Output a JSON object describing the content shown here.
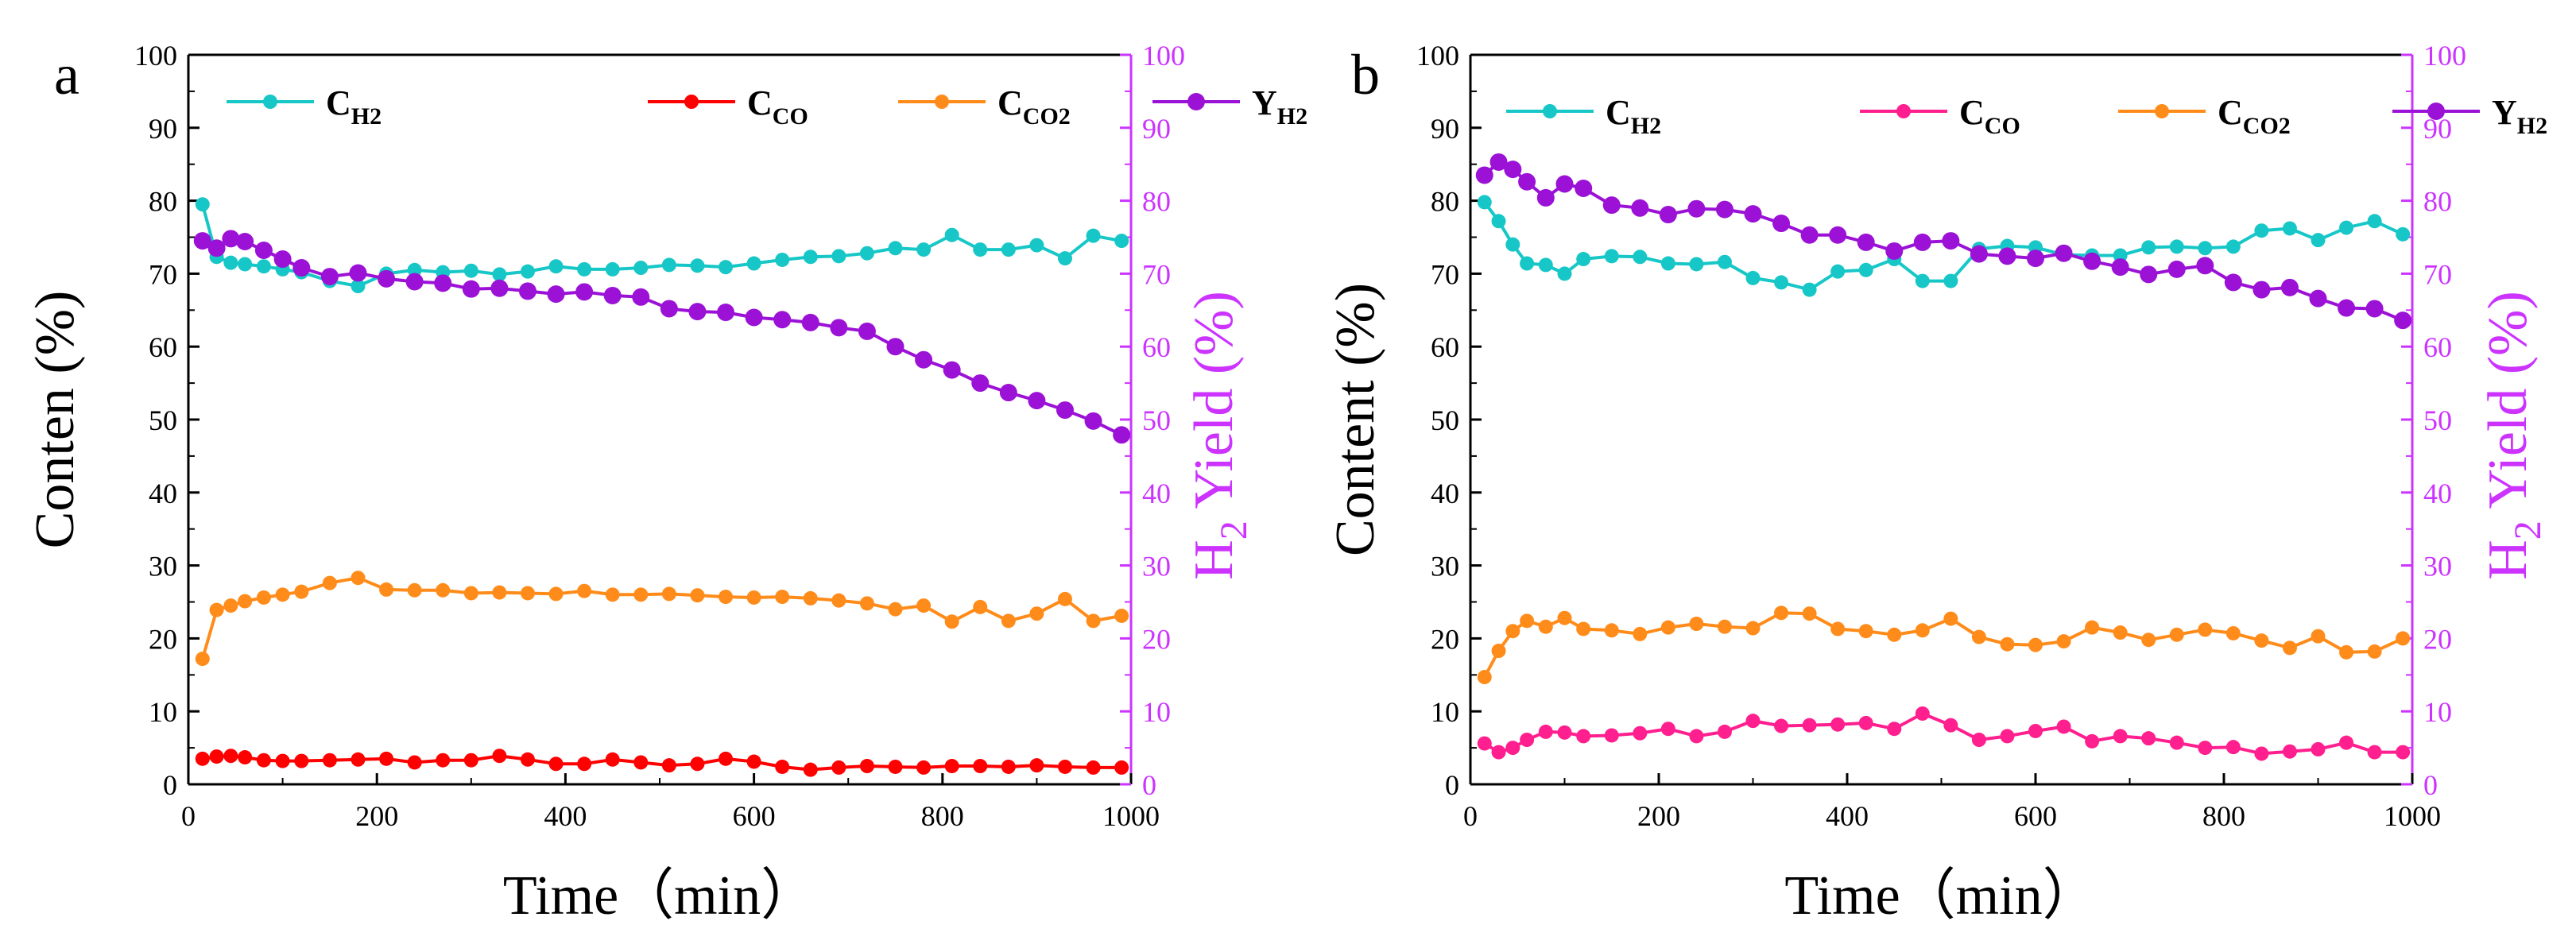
{
  "chart_data": [
    {
      "type": "line",
      "panel_label": "a",
      "xlabel": "Time（min）",
      "ylabel": "Conten (%)",
      "y2label": {
        "base": "H",
        "sub": "2",
        "rest": " Yield (%)"
      },
      "xlim": [
        0,
        1000
      ],
      "ylim": [
        0,
        100
      ],
      "y2lim": [
        0,
        100
      ],
      "x_ticks": [
        "0",
        "200",
        "400",
        "600",
        "800",
        "1000"
      ],
      "y_ticks": [
        "0",
        "10",
        "20",
        "30",
        "40",
        "50",
        "60",
        "70",
        "80",
        "90",
        "100"
      ],
      "y2_ticks": [
        "0",
        "10",
        "20",
        "30",
        "40",
        "50",
        "60",
        "70",
        "80",
        "90",
        "100"
      ],
      "series": [
        {
          "name": "C_H2",
          "label": "C",
          "label_sub": "H2",
          "color": "#17c7c7",
          "axis": "left",
          "x": [
            15,
            30,
            45,
            60,
            80,
            100,
            120,
            150,
            180,
            210,
            240,
            270,
            300,
            330,
            360,
            390,
            420,
            450,
            480,
            510,
            540,
            570,
            600,
            630,
            660,
            690,
            720,
            750,
            780,
            810,
            840,
            870,
            900,
            930,
            960,
            990
          ],
          "y": [
            79.5,
            72.3,
            71.5,
            71.3,
            71,
            70.6,
            70.2,
            69,
            68.3,
            70,
            70.5,
            70.2,
            70.4,
            69.9,
            70.3,
            71,
            70.6,
            70.6,
            70.8,
            71.2,
            71.1,
            70.9,
            71.4,
            71.9,
            72.3,
            72.4,
            72.8,
            73.5,
            73.3,
            75.3,
            73.3,
            73.3,
            73.9,
            72.1,
            75.2,
            74.5
          ]
        },
        {
          "name": "C_CO",
          "label": "C",
          "label_sub": "CO",
          "color": "#ff0000",
          "axis": "left",
          "x": [
            15,
            30,
            45,
            60,
            80,
            100,
            120,
            150,
            180,
            210,
            240,
            270,
            300,
            330,
            360,
            390,
            420,
            450,
            480,
            510,
            540,
            570,
            600,
            630,
            660,
            690,
            720,
            750,
            780,
            810,
            840,
            870,
            900,
            930,
            960,
            990
          ],
          "y": [
            3.5,
            3.8,
            3.9,
            3.7,
            3.3,
            3.2,
            3.2,
            3.3,
            3.4,
            3.5,
            3,
            3.3,
            3.3,
            3.9,
            3.4,
            2.8,
            2.8,
            3.4,
            3,
            2.6,
            2.8,
            3.5,
            3.1,
            2.4,
            2,
            2.3,
            2.5,
            2.4,
            2.3,
            2.5,
            2.5,
            2.4,
            2.6,
            2.4,
            2.3,
            2.3
          ]
        },
        {
          "name": "C_CO2",
          "label": "C",
          "label_sub": "CO2",
          "color": "#ff8c1a",
          "axis": "left",
          "x": [
            15,
            30,
            45,
            60,
            80,
            100,
            120,
            150,
            180,
            210,
            240,
            270,
            300,
            330,
            360,
            390,
            420,
            450,
            480,
            510,
            540,
            570,
            600,
            630,
            660,
            690,
            720,
            750,
            780,
            810,
            840,
            870,
            900,
            930,
            960,
            990
          ],
          "y": [
            17.2,
            23.9,
            24.5,
            25.1,
            25.6,
            26,
            26.4,
            27.6,
            28.3,
            26.7,
            26.6,
            26.6,
            26.2,
            26.3,
            26.2,
            26.1,
            26.5,
            26,
            26,
            26.1,
            25.9,
            25.7,
            25.6,
            25.7,
            25.5,
            25.2,
            24.8,
            24,
            24.5,
            22.3,
            24.3,
            22.4,
            23.4,
            25.4,
            22.4,
            23.1
          ]
        },
        {
          "name": "Y_H2",
          "label": "Y",
          "label_sub": "H2",
          "color": "#9b12d6",
          "axis": "right",
          "x": [
            15,
            30,
            45,
            60,
            80,
            100,
            120,
            150,
            180,
            210,
            240,
            270,
            300,
            330,
            360,
            390,
            420,
            450,
            480,
            510,
            540,
            570,
            600,
            630,
            660,
            690,
            720,
            750,
            780,
            810,
            840,
            870,
            900,
            930,
            960,
            990
          ],
          "y": [
            74.5,
            73.5,
            74.8,
            74.4,
            73.2,
            72,
            70.8,
            69.6,
            70.1,
            69.3,
            68.9,
            68.7,
            67.9,
            68,
            67.6,
            67.2,
            67.5,
            67,
            66.8,
            65.2,
            64.8,
            64.7,
            64,
            63.7,
            63.3,
            62.6,
            62.1,
            60,
            58.2,
            56.8,
            55,
            53.7,
            52.6,
            51.3,
            49.8,
            47.9
          ]
        }
      ],
      "legend": {
        "placement": "top"
      }
    },
    {
      "type": "line",
      "panel_label": "b",
      "xlabel": "Time（min）",
      "ylabel": "Content (%)",
      "y2label": {
        "base": "H",
        "sub": "2",
        "rest": " Yield (%)"
      },
      "xlim": [
        0,
        1000
      ],
      "ylim": [
        0,
        100
      ],
      "y2lim": [
        0,
        100
      ],
      "x_ticks": [
        "0",
        "200",
        "400",
        "600",
        "800",
        "1000"
      ],
      "y_ticks": [
        "0",
        "10",
        "20",
        "30",
        "40",
        "50",
        "60",
        "70",
        "80",
        "90",
        "100"
      ],
      "y2_ticks": [
        "0",
        "10",
        "20",
        "30",
        "40",
        "50",
        "60",
        "70",
        "80",
        "90",
        "100"
      ],
      "series": [
        {
          "name": "C_H2",
          "label": "C",
          "label_sub": "H2",
          "color": "#17c7c7",
          "axis": "left",
          "x": [
            15,
            30,
            45,
            60,
            80,
            100,
            120,
            150,
            180,
            210,
            240,
            270,
            300,
            330,
            360,
            390,
            420,
            450,
            480,
            510,
            540,
            570,
            600,
            630,
            660,
            690,
            720,
            750,
            780,
            810,
            840,
            870,
            900,
            930,
            960,
            990
          ],
          "y": [
            79.8,
            77.2,
            74,
            71.4,
            71.2,
            70,
            72,
            72.4,
            72.3,
            71.4,
            71.3,
            71.6,
            69.4,
            68.8,
            67.8,
            70.3,
            70.5,
            72,
            69,
            69,
            73.4,
            73.8,
            73.6,
            72.6,
            72.5,
            72.5,
            73.6,
            73.7,
            73.5,
            73.7,
            75.9,
            76.2,
            74.6,
            76.3,
            77.2,
            75.4
          ]
        },
        {
          "name": "C_CO",
          "label": "C",
          "label_sub": "CO",
          "color": "#ff1f8e",
          "axis": "left",
          "x": [
            15,
            30,
            45,
            60,
            80,
            100,
            120,
            150,
            180,
            210,
            240,
            270,
            300,
            330,
            360,
            390,
            420,
            450,
            480,
            510,
            540,
            570,
            600,
            630,
            660,
            690,
            720,
            750,
            780,
            810,
            840,
            870,
            900,
            930,
            960,
            990
          ],
          "y": [
            5.6,
            4.4,
            5,
            6.1,
            7.2,
            7.1,
            6.6,
            6.7,
            7,
            7.6,
            6.6,
            7.2,
            8.7,
            8,
            8.1,
            8.2,
            8.4,
            7.6,
            9.7,
            8.1,
            6.1,
            6.6,
            7.3,
            7.9,
            5.9,
            6.6,
            6.3,
            5.7,
            5,
            5.1,
            4.2,
            4.5,
            4.8,
            5.7,
            4.4,
            4.4
          ]
        },
        {
          "name": "C_CO2",
          "label": "C",
          "label_sub": "CO2",
          "color": "#ff8c1a",
          "axis": "left",
          "x": [
            15,
            30,
            45,
            60,
            80,
            100,
            120,
            150,
            180,
            210,
            240,
            270,
            300,
            330,
            360,
            390,
            420,
            450,
            480,
            510,
            540,
            570,
            600,
            630,
            660,
            690,
            720,
            750,
            780,
            810,
            840,
            870,
            900,
            930,
            960,
            990
          ],
          "y": [
            14.7,
            18.3,
            21,
            22.4,
            21.6,
            22.8,
            21.3,
            21.1,
            20.6,
            21.5,
            22,
            21.6,
            21.4,
            23.5,
            23.4,
            21.3,
            21,
            20.5,
            21.1,
            22.7,
            20.2,
            19.2,
            19.1,
            19.6,
            21.5,
            20.8,
            19.8,
            20.5,
            21.2,
            20.7,
            19.7,
            18.7,
            20.3,
            18.1,
            18.2,
            20
          ]
        },
        {
          "name": "Y_H2",
          "label": "Y",
          "label_sub": "H2",
          "color": "#9b12d6",
          "axis": "right",
          "x": [
            15,
            30,
            45,
            60,
            80,
            100,
            120,
            150,
            180,
            210,
            240,
            270,
            300,
            330,
            360,
            390,
            420,
            450,
            480,
            510,
            540,
            570,
            600,
            630,
            660,
            690,
            720,
            750,
            780,
            810,
            840,
            870,
            900,
            930,
            960,
            990
          ],
          "y": [
            83.5,
            85.3,
            84.3,
            82.6,
            80.4,
            82.3,
            81.7,
            79.4,
            79,
            78.1,
            78.9,
            78.8,
            78.2,
            76.9,
            75.3,
            75.3,
            74.3,
            73.1,
            74.3,
            74.5,
            72.7,
            72.4,
            72.1,
            72.8,
            71.7,
            70.9,
            69.9,
            70.6,
            71.1,
            68.8,
            67.8,
            68.1,
            66.6,
            65.3,
            65.2,
            63.6
          ]
        }
      ],
      "legend": {
        "placement": "top"
      }
    }
  ]
}
